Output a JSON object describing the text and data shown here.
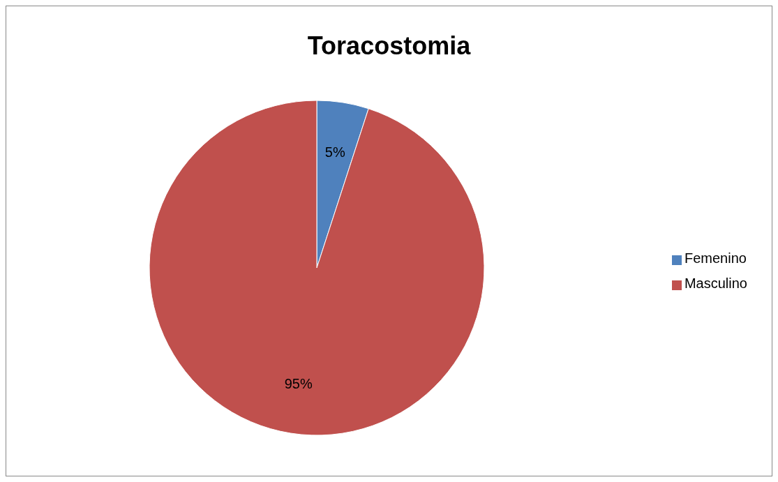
{
  "chart_data": {
    "type": "pie",
    "title": "Toracostomia",
    "categories": [
      "Femenino",
      "Masculino"
    ],
    "values": [
      5,
      95
    ],
    "colors": [
      "#4f81bd",
      "#c0504d"
    ],
    "value_labels": [
      "5%",
      "95%"
    ],
    "legend": "right"
  }
}
